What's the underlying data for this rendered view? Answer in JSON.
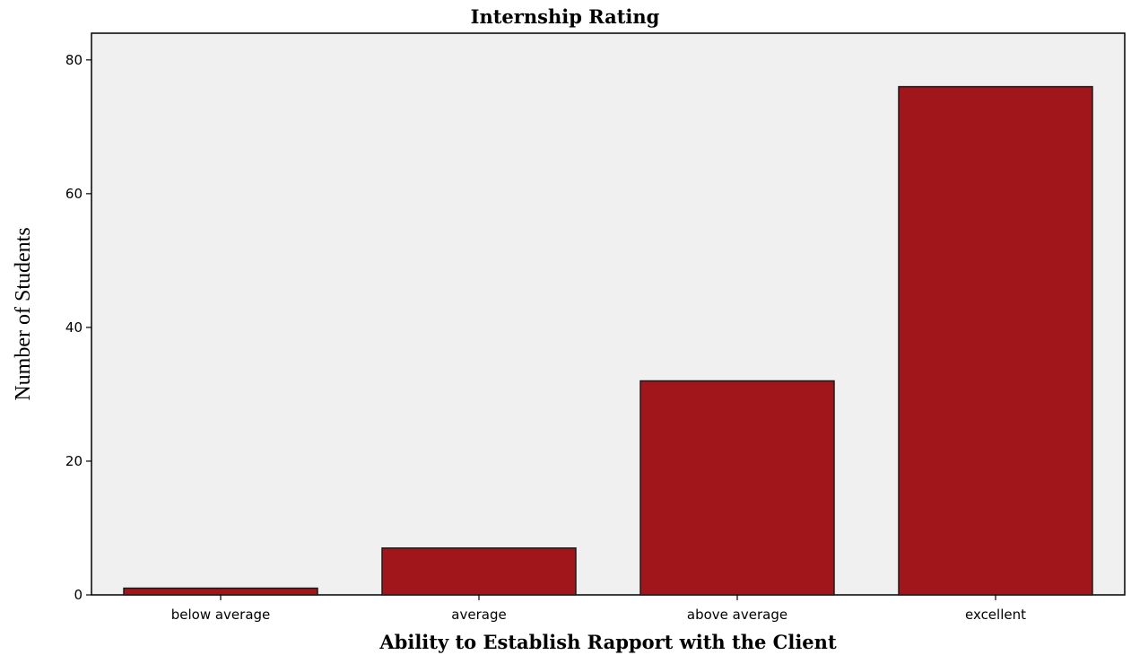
{
  "chart_data": {
    "type": "bar",
    "title": "Internship Rating",
    "xlabel": "Ability to Establish Rapport with the Client",
    "ylabel": "Number of Students",
    "categories": [
      "below average",
      "average",
      "above average",
      "excellent"
    ],
    "values": [
      1,
      7,
      32,
      76
    ],
    "ylim": [
      0,
      84
    ],
    "yticks": [
      0,
      20,
      40,
      60,
      80
    ],
    "grid": false,
    "legend": "none",
    "colors": {
      "bar_fill": "#a0161a",
      "bar_stroke": "#1a1a1a",
      "plot_background": "#f0f0f0",
      "axis": "#000000"
    }
  }
}
